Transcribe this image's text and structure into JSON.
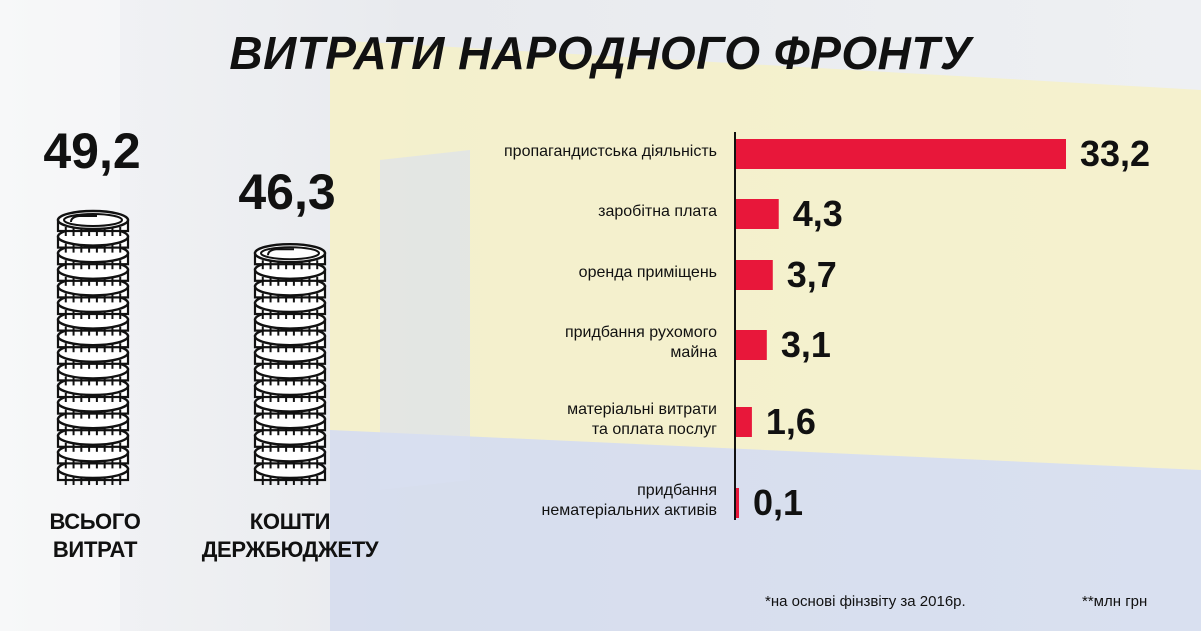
{
  "title": "ВИТРАТИ НАРОДНОГО ФРОНТУ",
  "totals": [
    {
      "value": "49,2",
      "label_lines": [
        "ВСЬОГО",
        "ВИТРАТ"
      ],
      "coins": 16
    },
    {
      "value": "46,3",
      "label_lines": [
        "КОШТИ",
        "ДЕРЖБЮДЖЕТУ"
      ],
      "coins": 14
    }
  ],
  "footnotes": {
    "source": "*на основі фінзвіту за 2016р.",
    "units": "**млн грн"
  },
  "colors": {
    "bar": "#e8173a",
    "text": "#111111"
  },
  "chart_data": {
    "type": "bar",
    "orientation": "horizontal",
    "categories": [
      [
        "пропагандистська діяльність"
      ],
      [
        "заробітна плата"
      ],
      [
        "оренда приміщень"
      ],
      [
        "придбання рухомого",
        "майна "
      ],
      [
        "матеріальні витрати",
        "та оплата послуг"
      ],
      [
        "придбання",
        "нематеріальних активів"
      ]
    ],
    "values": [
      33.2,
      4.3,
      3.7,
      3.1,
      1.6,
      0.1
    ],
    "value_labels": [
      "33,2",
      "4,3",
      "3,7",
      "3,1",
      "1,6",
      "0,1"
    ],
    "xlim": [
      0,
      33.2
    ],
    "grid": false,
    "legend": "none"
  }
}
